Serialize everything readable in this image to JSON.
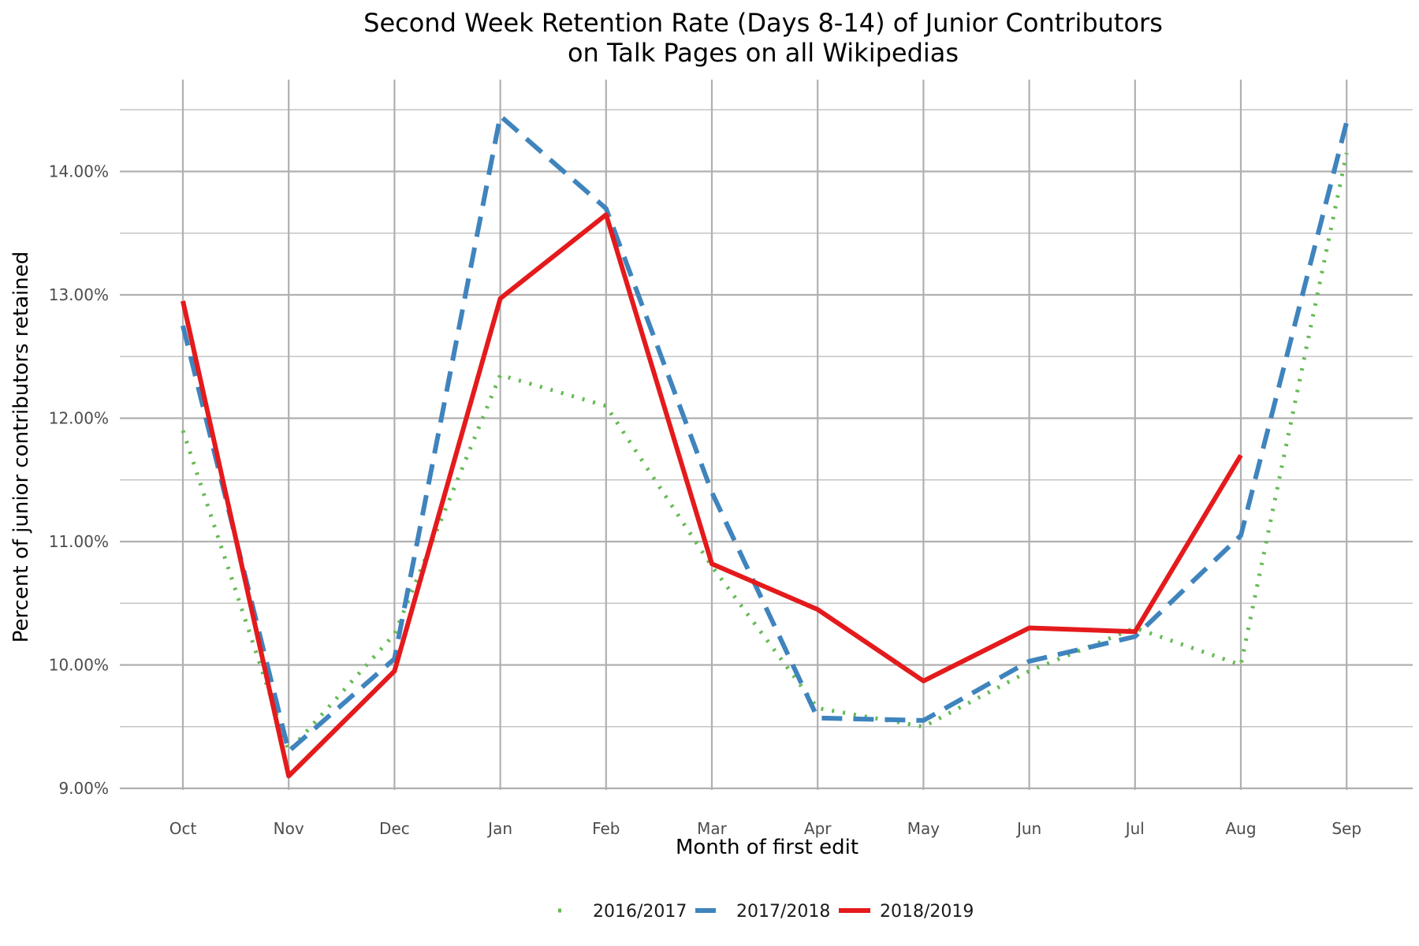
{
  "chart_data": {
    "type": "line",
    "title": [
      "Second Week Retention Rate (Days 8-14) of Junior Contributors",
      "on Talk Pages on all Wikipedias"
    ],
    "xlabel": "Month of first edit",
    "ylabel": "Percent of junior contributors retained",
    "categories": [
      "Oct",
      "Nov",
      "Dec",
      "Jan",
      "Feb",
      "Mar",
      "Apr",
      "May",
      "Jun",
      "Jul",
      "Aug",
      "Sep"
    ],
    "ylim": [
      8.9,
      14.5
    ],
    "yticks": [
      9,
      10,
      11,
      12,
      13,
      14
    ],
    "ytick_labels": [
      "9.00%",
      "10.00%",
      "11.00%",
      "12.00%",
      "13.00%",
      "14.00%"
    ],
    "grid": true,
    "legend_position": "bottom",
    "series": [
      {
        "name": "2016/2017",
        "color": "#66bb55",
        "style": "dotted",
        "values": [
          11.9,
          9.3,
          10.25,
          12.35,
          12.1,
          10.8,
          9.65,
          9.5,
          9.95,
          10.3,
          10.0,
          14.15
        ]
      },
      {
        "name": "2017/2018",
        "color": "#3f84bd",
        "style": "dashed",
        "values": [
          12.75,
          9.3,
          10.05,
          14.45,
          13.7,
          11.4,
          9.57,
          9.55,
          10.03,
          10.23,
          11.05,
          14.4
        ]
      },
      {
        "name": "2018/2019",
        "color": "#e41a1c",
        "style": "solid",
        "values": [
          12.95,
          9.1,
          9.95,
          12.97,
          13.65,
          10.82,
          10.45,
          9.87,
          10.3,
          10.27,
          11.7,
          null
        ]
      }
    ]
  }
}
